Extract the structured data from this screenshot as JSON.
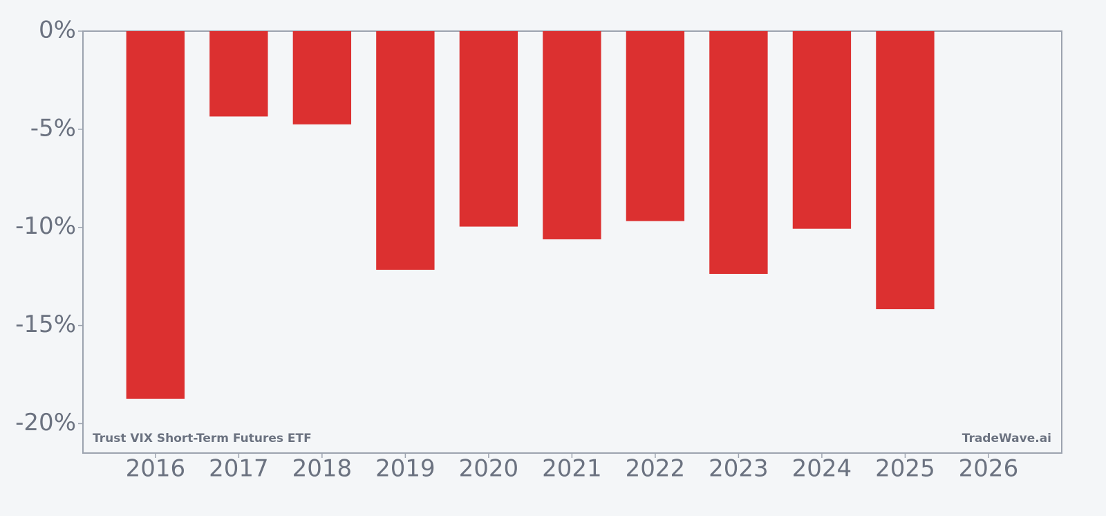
{
  "chart_data": {
    "type": "bar",
    "x": [
      2016,
      2017,
      2018,
      2019,
      2020,
      2021,
      2022,
      2023,
      2024,
      2025
    ],
    "values": [
      -18.74,
      -4.35,
      -4.75,
      -12.16,
      -9.96,
      -10.61,
      -9.68,
      -12.37,
      -10.07,
      -14.17
    ],
    "color": "#dc3030",
    "xlim": [
      2015.13,
      2026.88
    ],
    "xticks": [
      2016,
      2017,
      2018,
      2019,
      2020,
      2021,
      2022,
      2023,
      2024,
      2025,
      2026
    ],
    "ylim": [
      -21.5,
      0
    ],
    "yticks": [
      {
        "value": 0,
        "label": "0%"
      },
      {
        "value": -5,
        "label": "-5%"
      },
      {
        "value": -10,
        "label": "-10%"
      },
      {
        "value": -15,
        "label": "-15%"
      },
      {
        "value": -20,
        "label": "-20%"
      }
    ],
    "label": "Trust VIX Short-Term Futures ETF",
    "source": "TradeWave.ai"
  }
}
